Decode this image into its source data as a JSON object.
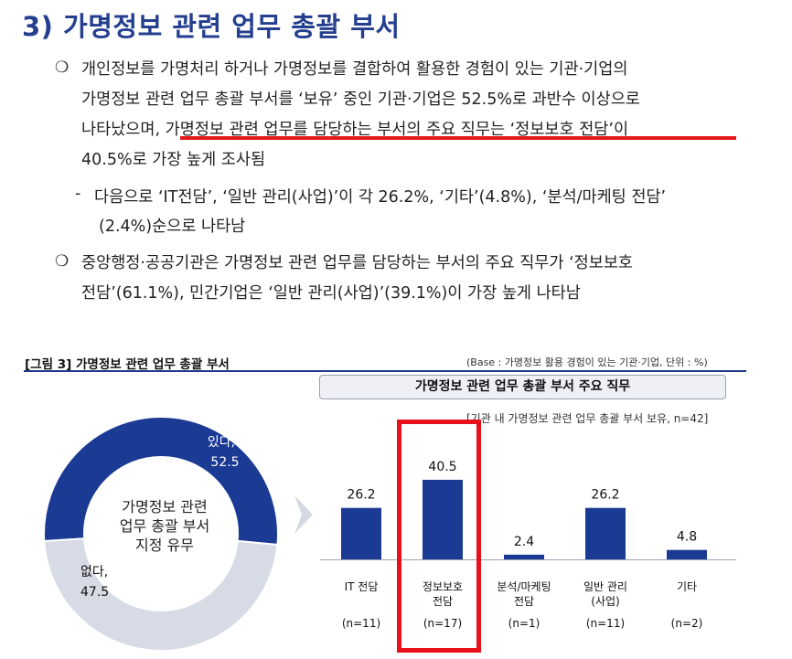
{
  "section": {
    "title": "3) 가명정보 관련 업무 총괄 부서"
  },
  "paragraphs": {
    "p1": {
      "bullet": "❍",
      "lines": [
        "개인정보를 가명처리 하거나 가명정보를 결합하여 활용한 경험이 있는 기관·기업의",
        "가명정보 관련 업무 총괄 부서를 ‘보유’ 중인 기관·기업은 52.5%로 과반수 이상으로",
        "나타났으며, 가명정보 관련 업무를 담당하는 부서의 주요 직무는 ‘정보보호 전담’이",
        "40.5%로 가장 높게 조사됨"
      ]
    },
    "sub1": {
      "dash": "-",
      "lines": [
        "다음으로 ‘IT전담’, ‘일반 관리(사업)’이 각 26.2%, ‘기타’(4.8%), ‘분석/마케팅 전담’",
        "(2.4%)순으로 나타남"
      ]
    },
    "p2": {
      "bullet": "❍",
      "lines": [
        "중앙행정·공공기관은 가명정보 관련 업무를 담당하는 부서의 주요 직무가 ‘정보보호",
        "전담’(61.1%), 민간기업은 ‘일반 관리(사업)’(39.1%)이 가장 높게 나타남"
      ]
    }
  },
  "figure": {
    "caption": "[그림 3] 가명정보 관련 업무 총괄 부서",
    "base_note": "(Base : 가명정보 활용 경험이 있는 기관·기업, 단위 : %)",
    "bar_subtitle": "가명정보 관련 업무 총괄 부서 주요 직무",
    "bar_note": "[기관 내 가명정보 관련 업무 총괄 부서 보유, n=42]"
  },
  "colors": {
    "title_blue": "#243f8f",
    "bar_blue": "#1b3a94",
    "donut_blue": "#1b3a94",
    "donut_light": "#d7dbe5",
    "highlight_red": "#e8101b"
  },
  "chart_data": [
    {
      "type": "pie",
      "title": "가명정보 관련\n업무 총괄 부서\n지정 유무",
      "slices": [
        {
          "label": "있다,",
          "value": 52.5,
          "value_text": "52.5"
        },
        {
          "label": "없다,",
          "value": 47.5,
          "value_text": "47.5"
        }
      ]
    },
    {
      "type": "bar",
      "categories": [
        "IT 전담",
        "정보보호\n전담",
        "분석/마케팅\n전담",
        "일반 관리\n(사업)",
        "기타"
      ],
      "sample_sizes": [
        "(n=11)",
        "(n=17)",
        "(n=1)",
        "(n=11)",
        "(n=2)"
      ],
      "values": [
        26.2,
        40.5,
        2.4,
        26.2,
        4.8
      ],
      "value_labels": [
        "26.2",
        "40.5",
        "2.4",
        "26.2",
        "4.8"
      ],
      "ylim": [
        0,
        50
      ],
      "highlight_index": 1
    }
  ]
}
